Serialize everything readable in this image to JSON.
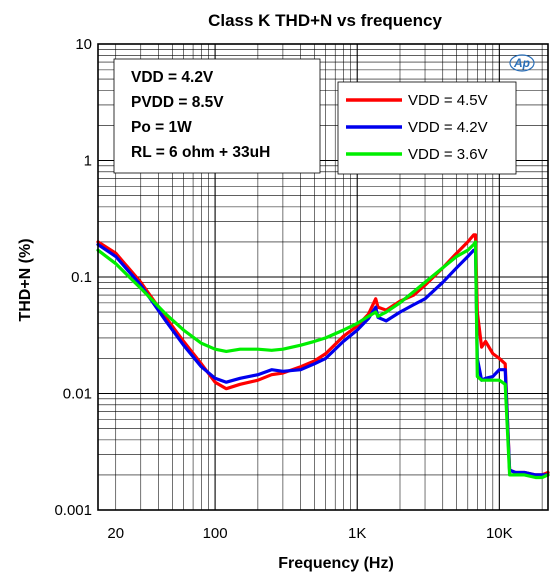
{
  "chart_data": {
    "type": "line",
    "title": "Class K THD+N vs frequency",
    "xlabel": "Frequency (Hz)",
    "ylabel": "THD+N (%)",
    "xscale": "log",
    "yscale": "log",
    "xlim": [
      15,
      22000
    ],
    "ylim": [
      0.001,
      10
    ],
    "grid": true,
    "x_tick_labels": [
      {
        "value": 20,
        "label": "20"
      },
      {
        "value": 100,
        "label": "100"
      },
      {
        "value": 1000,
        "label": "1K"
      },
      {
        "value": 10000,
        "label": "10K"
      }
    ],
    "y_tick_labels": [
      {
        "value": 10,
        "label": "10"
      },
      {
        "value": 1,
        "label": "1"
      },
      {
        "value": 0.1,
        "label": "0.1"
      },
      {
        "value": 0.01,
        "label": "0.01"
      },
      {
        "value": 0.001,
        "label": "0.001"
      }
    ],
    "conditions": [
      "VDD = 4.2V",
      "PVDD = 8.5V",
      "Po = 1W",
      "RL = 6 ohm + 33uH"
    ],
    "legend_position": "top-right",
    "logo": "Ap",
    "series": [
      {
        "name": "VDD = 4.5V",
        "color": "#ff0000",
        "points": [
          [
            15,
            0.2
          ],
          [
            20,
            0.16
          ],
          [
            30,
            0.09
          ],
          [
            45,
            0.045
          ],
          [
            60,
            0.028
          ],
          [
            80,
            0.018
          ],
          [
            100,
            0.0125
          ],
          [
            120,
            0.011
          ],
          [
            150,
            0.012
          ],
          [
            200,
            0.013
          ],
          [
            250,
            0.0145
          ],
          [
            300,
            0.015
          ],
          [
            400,
            0.017
          ],
          [
            500,
            0.019
          ],
          [
            600,
            0.022
          ],
          [
            800,
            0.031
          ],
          [
            1000,
            0.038
          ],
          [
            1200,
            0.048
          ],
          [
            1350,
            0.065
          ],
          [
            1400,
            0.055
          ],
          [
            1600,
            0.052
          ],
          [
            2000,
            0.062
          ],
          [
            2500,
            0.07
          ],
          [
            3000,
            0.085
          ],
          [
            4000,
            0.12
          ],
          [
            5000,
            0.16
          ],
          [
            6000,
            0.2
          ],
          [
            6600,
            0.23
          ],
          [
            6800,
            0.23
          ],
          [
            7000,
            0.05
          ],
          [
            7500,
            0.025
          ],
          [
            8000,
            0.028
          ],
          [
            9000,
            0.022
          ],
          [
            10000,
            0.02
          ],
          [
            11000,
            0.018
          ],
          [
            11800,
            0.0022
          ],
          [
            13000,
            0.0021
          ],
          [
            15000,
            0.0021
          ],
          [
            18000,
            0.002
          ],
          [
            20000,
            0.002
          ],
          [
            22000,
            0.0021
          ]
        ]
      },
      {
        "name": "VDD = 4.2V",
        "color": "#0000ee",
        "points": [
          [
            15,
            0.19
          ],
          [
            20,
            0.15
          ],
          [
            30,
            0.085
          ],
          [
            45,
            0.042
          ],
          [
            60,
            0.026
          ],
          [
            80,
            0.017
          ],
          [
            100,
            0.0135
          ],
          [
            120,
            0.0125
          ],
          [
            150,
            0.0135
          ],
          [
            200,
            0.0145
          ],
          [
            250,
            0.016
          ],
          [
            300,
            0.0155
          ],
          [
            400,
            0.016
          ],
          [
            500,
            0.018
          ],
          [
            600,
            0.02
          ],
          [
            800,
            0.028
          ],
          [
            1000,
            0.035
          ],
          [
            1200,
            0.044
          ],
          [
            1350,
            0.055
          ],
          [
            1400,
            0.045
          ],
          [
            1600,
            0.042
          ],
          [
            2000,
            0.05
          ],
          [
            2500,
            0.058
          ],
          [
            3000,
            0.065
          ],
          [
            4000,
            0.09
          ],
          [
            5000,
            0.12
          ],
          [
            6000,
            0.15
          ],
          [
            6600,
            0.17
          ],
          [
            6800,
            0.17
          ],
          [
            7000,
            0.02
          ],
          [
            7500,
            0.013
          ],
          [
            8000,
            0.0135
          ],
          [
            9000,
            0.014
          ],
          [
            10000,
            0.016
          ],
          [
            11000,
            0.016
          ],
          [
            11800,
            0.0022
          ],
          [
            13000,
            0.0021
          ],
          [
            15000,
            0.0021
          ],
          [
            18000,
            0.002
          ],
          [
            20000,
            0.002
          ],
          [
            22000,
            0.002
          ]
        ]
      },
      {
        "name": "VDD = 3.6V",
        "color": "#00ee00",
        "points": [
          [
            15,
            0.17
          ],
          [
            20,
            0.13
          ],
          [
            30,
            0.08
          ],
          [
            45,
            0.048
          ],
          [
            60,
            0.035
          ],
          [
            80,
            0.027
          ],
          [
            100,
            0.024
          ],
          [
            120,
            0.023
          ],
          [
            150,
            0.024
          ],
          [
            200,
            0.024
          ],
          [
            250,
            0.0235
          ],
          [
            300,
            0.024
          ],
          [
            400,
            0.026
          ],
          [
            500,
            0.028
          ],
          [
            600,
            0.03
          ],
          [
            800,
            0.035
          ],
          [
            1000,
            0.04
          ],
          [
            1200,
            0.046
          ],
          [
            1350,
            0.05
          ],
          [
            1400,
            0.046
          ],
          [
            1600,
            0.05
          ],
          [
            2000,
            0.06
          ],
          [
            2500,
            0.075
          ],
          [
            3000,
            0.09
          ],
          [
            4000,
            0.12
          ],
          [
            5000,
            0.15
          ],
          [
            6000,
            0.17
          ],
          [
            6600,
            0.19
          ],
          [
            6800,
            0.2
          ],
          [
            7000,
            0.014
          ],
          [
            7500,
            0.013
          ],
          [
            8000,
            0.013
          ],
          [
            9000,
            0.013
          ],
          [
            10000,
            0.013
          ],
          [
            11000,
            0.012
          ],
          [
            11800,
            0.002
          ],
          [
            13000,
            0.002
          ],
          [
            15000,
            0.002
          ],
          [
            18000,
            0.0019
          ],
          [
            20000,
            0.0019
          ],
          [
            22000,
            0.002
          ]
        ]
      }
    ]
  }
}
